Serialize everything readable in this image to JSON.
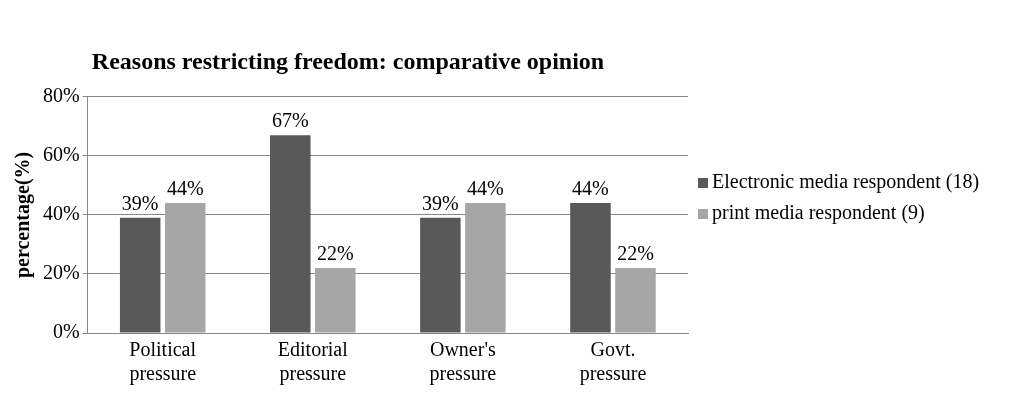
{
  "chart_data": {
    "type": "bar",
    "title": "Reasons restricting freedom: comparative opinion",
    "ylabel": "percentage(%)",
    "categories": [
      "Political pressure",
      "Editorial pressure",
      "Owner's pressure",
      "Govt. pressure"
    ],
    "series": [
      {
        "name": "Electronic media respondent (18)",
        "color": "#595959",
        "values": [
          39,
          67,
          39,
          44
        ],
        "value_labels": [
          "39%",
          "67%",
          "39%",
          "44%"
        ]
      },
      {
        "name": "print media respondent (9)",
        "color": "#a6a6a6",
        "values": [
          44,
          22,
          44,
          22
        ],
        "value_labels": [
          "44%",
          "22%",
          "44%",
          "22%"
        ]
      }
    ],
    "ylim": [
      0,
      80
    ],
    "yticks": [
      {
        "value": 0,
        "label": "0%"
      },
      {
        "value": 20,
        "label": "20%"
      },
      {
        "value": 40,
        "label": "40%"
      },
      {
        "value": 60,
        "label": "60%"
      },
      {
        "value": 80,
        "label": "80%"
      }
    ],
    "grid": "y",
    "legend": "right"
  }
}
